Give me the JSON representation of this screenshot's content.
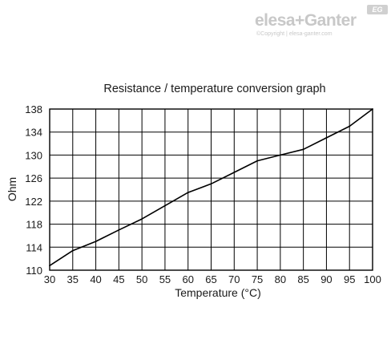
{
  "logo": {
    "text": "elesa+Ganter",
    "badge": "EG",
    "copyright": "©Copyright | elesa-ganter.com"
  },
  "chart_data": {
    "type": "line",
    "title": "Resistance / temperature conversion graph",
    "xlabel": "Temperature (°C)",
    "ylabel": "Ohm",
    "xlim": [
      30,
      100
    ],
    "ylim": [
      110,
      138
    ],
    "grid": true,
    "x_ticks": [
      30,
      35,
      40,
      45,
      50,
      55,
      60,
      65,
      70,
      75,
      80,
      85,
      90,
      95,
      100
    ],
    "y_ticks": [
      110,
      114,
      118,
      122,
      126,
      130,
      134,
      138
    ],
    "series": [
      {
        "x": [
          30,
          35,
          40,
          45,
          50,
          55,
          60,
          65,
          70,
          75,
          80,
          85,
          90,
          95,
          100
        ],
        "y": [
          110.8,
          113.4,
          115.0,
          117.0,
          118.9,
          121.2,
          123.5,
          125.0,
          127.0,
          129.0,
          130.0,
          131.0,
          133.0,
          135.0,
          138.0
        ]
      }
    ],
    "colors": {
      "line": "#000000",
      "grid": "#000000",
      "background": "#ffffff"
    }
  }
}
